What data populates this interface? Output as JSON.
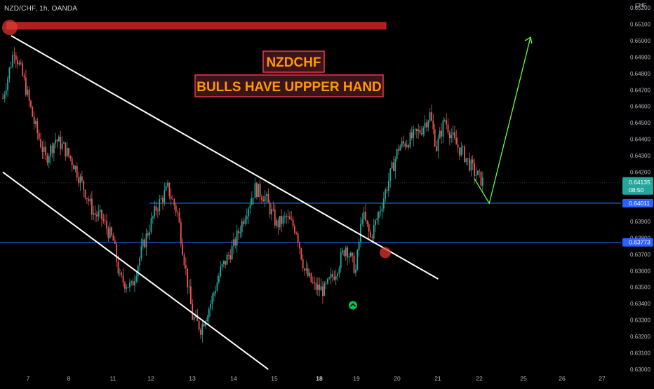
{
  "symbol_label": "NZD/CHF, 1h, OANDA",
  "chart_data": {
    "type": "candlestick",
    "title": "NZDCHF",
    "currency": "CHF",
    "ylim": [
      0.63,
      0.6525
    ],
    "y_ticks": [
      0.652,
      0.651,
      0.65,
      0.649,
      0.648,
      0.647,
      0.646,
      0.645,
      0.644,
      0.643,
      0.642,
      0.641,
      0.64,
      0.639,
      0.638,
      0.637,
      0.636,
      0.635,
      0.634,
      0.633,
      0.632,
      0.631,
      0.63
    ],
    "x_ticks": [
      {
        "label": "7",
        "bold": false
      },
      {
        "label": "8",
        "bold": false
      },
      {
        "label": "11",
        "bold": false
      },
      {
        "label": "12",
        "bold": false
      },
      {
        "label": "13",
        "bold": false
      },
      {
        "label": "14",
        "bold": false
      },
      {
        "label": "15",
        "bold": false
      },
      {
        "label": "18",
        "bold": true
      },
      {
        "label": "19",
        "bold": false
      },
      {
        "label": "20",
        "bold": false
      },
      {
        "label": "21",
        "bold": false
      },
      {
        "label": "22",
        "bold": false
      },
      {
        "label": "25",
        "bold": false
      },
      {
        "label": "26",
        "bold": false
      },
      {
        "label": "27",
        "bold": false
      }
    ],
    "price_path": [
      [
        0,
        0.6465
      ],
      [
        0.7,
        0.6495
      ],
      [
        1.3,
        0.6475
      ],
      [
        1.9,
        0.645
      ],
      [
        2.6,
        0.6428
      ],
      [
        3.2,
        0.644
      ],
      [
        3.7,
        0.6435
      ],
      [
        4.3,
        0.6425
      ],
      [
        5.0,
        0.6408
      ],
      [
        5.5,
        0.6395
      ],
      [
        6.0,
        0.6392
      ],
      [
        6.7,
        0.6378
      ],
      [
        7.1,
        0.6355
      ],
      [
        7.8,
        0.635
      ],
      [
        8.5,
        0.6375
      ],
      [
        9.3,
        0.6398
      ],
      [
        10.0,
        0.641
      ],
      [
        10.6,
        0.6395
      ],
      [
        11.1,
        0.636
      ],
      [
        11.5,
        0.6332
      ],
      [
        12.0,
        0.6325
      ],
      [
        12.6,
        0.634
      ],
      [
        13.2,
        0.636
      ],
      [
        14.0,
        0.6375
      ],
      [
        14.7,
        0.6395
      ],
      [
        15.3,
        0.641
      ],
      [
        15.9,
        0.6405
      ],
      [
        16.6,
        0.6388
      ],
      [
        17.2,
        0.6392
      ],
      [
        17.8,
        0.6385
      ],
      [
        18.3,
        0.636
      ],
      [
        18.9,
        0.635
      ],
      [
        19.5,
        0.6348
      ],
      [
        20.2,
        0.636
      ],
      [
        20.8,
        0.6375
      ],
      [
        21.4,
        0.636
      ],
      [
        21.8,
        0.6395
      ],
      [
        22.3,
        0.638
      ],
      [
        22.9,
        0.6398
      ],
      [
        23.4,
        0.6415
      ],
      [
        24.0,
        0.6435
      ],
      [
        24.7,
        0.644
      ],
      [
        25.3,
        0.6445
      ],
      [
        25.9,
        0.6455
      ],
      [
        26.3,
        0.6435
      ],
      [
        26.8,
        0.6452
      ],
      [
        27.4,
        0.6438
      ],
      [
        28.0,
        0.643
      ],
      [
        28.6,
        0.642
      ],
      [
        29.2,
        0.6413
      ]
    ],
    "current_price": {
      "value": 0.64135,
      "label": "0.64135",
      "countdown": "08:50"
    },
    "levels": [
      {
        "value": 0.64011,
        "label": "0.64011"
      },
      {
        "value": 0.63773,
        "label": "0.63773"
      }
    ],
    "resistance_zone": [
      0.6507,
      0.6511
    ],
    "channel_lines": [
      {
        "from": [
          0.5,
          0.6503
        ],
        "to": [
          26.4,
          0.6355
        ]
      },
      {
        "from": [
          0.0,
          0.642
        ],
        "to": [
          16.1,
          0.63
        ]
      }
    ],
    "projection": [
      [
        29.5,
        0.6401
      ],
      [
        32.0,
        0.6502
      ]
    ],
    "annotations": [
      "NZDCHF",
      "BULLS HAVE UPPPER HAND"
    ],
    "colors": {
      "up": "#26a69a",
      "down": "#ef5350",
      "level": "#2962ff",
      "zone": "#b71c1c",
      "label_text": "#ff9800",
      "projection": "#66ff33",
      "current_price": "#26a69a"
    }
  }
}
